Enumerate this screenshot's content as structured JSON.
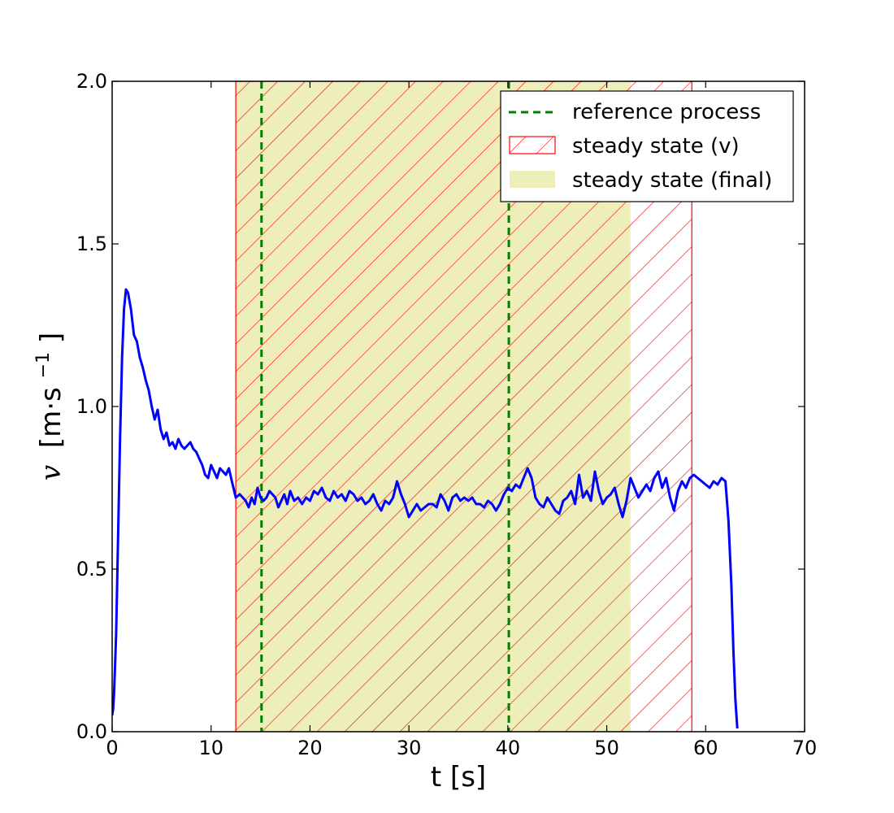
{
  "chart_data": {
    "type": "line",
    "title": "",
    "xlabel": "t [s]",
    "ylabel": {
      "symbol": "v",
      "unit_open": "[m·s",
      "exponent": "−1",
      "unit_close": "]"
    },
    "xlim": [
      0,
      70
    ],
    "ylim": [
      0,
      2.0
    ],
    "xticks": [
      0,
      10,
      20,
      30,
      40,
      50,
      60,
      70
    ],
    "xtick_labels": [
      "0",
      "10",
      "20",
      "30",
      "40",
      "50",
      "60",
      "70"
    ],
    "yticks": [
      0,
      0.5,
      1.0,
      1.5,
      2.0
    ],
    "ytick_labels": [
      "0.0",
      "0.5",
      "1.0",
      "1.5",
      "2.0"
    ],
    "grid": false,
    "legend_placement": "top-right",
    "colors": {
      "line": "#0000ff",
      "reference": "#008000",
      "hatch": "#ff0000",
      "final_fill": "#eeeebb"
    },
    "series": [
      {
        "values_x": [
          0,
          0.1,
          0.2,
          0.4,
          0.6,
          0.8,
          1.0,
          1.2,
          1.4,
          1.6,
          1.9,
          2.2,
          2.5,
          2.8,
          3.1,
          3.4,
          3.7,
          4.0,
          4.3,
          4.6,
          4.9,
          5.2,
          5.5,
          5.8,
          6.1,
          6.4,
          6.7,
          7.0,
          7.3,
          7.6,
          7.9,
          8.2,
          8.5,
          8.8,
          9.1,
          9.4,
          9.7,
          10.0,
          10.3,
          10.6,
          10.9,
          11.2,
          11.5,
          11.8,
          12.1,
          12.5,
          12.9,
          13.2,
          13.5,
          13.8,
          14.1,
          14.4,
          14.7,
          15.0,
          15.3,
          15.6,
          15.9,
          16.2,
          16.5,
          16.8,
          17.1,
          17.4,
          17.7,
          18.0,
          18.4,
          18.8,
          19.2,
          19.6,
          20.0,
          20.4,
          20.8,
          21.2,
          21.6,
          22.0,
          22.4,
          22.8,
          23.2,
          23.6,
          24.0,
          24.4,
          24.8,
          25.2,
          25.6,
          26.0,
          26.4,
          26.8,
          27.2,
          27.6,
          28.0,
          28.4,
          28.8,
          29.2,
          29.6,
          30.0,
          30.4,
          30.8,
          31.2,
          31.6,
          32.0,
          32.4,
          32.8,
          33.2,
          33.6,
          34.0,
          34.4,
          34.8,
          35.2,
          35.6,
          36.0,
          36.4,
          36.8,
          37.2,
          37.6,
          38.0,
          38.4,
          38.8,
          39.2,
          39.6,
          40.0,
          40.4,
          40.8,
          41.2,
          41.6,
          42.0,
          42.4,
          42.8,
          43.2,
          43.6,
          44.0,
          44.4,
          44.8,
          45.2,
          45.6,
          46.0,
          46.4,
          46.8,
          47.2,
          47.6,
          48.0,
          48.4,
          48.8,
          49.2,
          49.6,
          50.0,
          50.4,
          50.8,
          51.2,
          51.6,
          52.0,
          52.4,
          52.8,
          53.2,
          53.6,
          54.0,
          54.4,
          54.8,
          55.2,
          55.6,
          56.0,
          56.4,
          56.8,
          57.2,
          57.6,
          58.0,
          58.4,
          58.8,
          59.2,
          59.6,
          60.0,
          60.4,
          60.8,
          61.2,
          61.6,
          62.0,
          62.3,
          62.6,
          62.8,
          63.0,
          63.2
        ],
        "values_y": [
          0.05,
          0.07,
          0.12,
          0.3,
          0.6,
          0.9,
          1.15,
          1.3,
          1.36,
          1.35,
          1.3,
          1.22,
          1.2,
          1.15,
          1.12,
          1.08,
          1.05,
          1.0,
          0.96,
          0.99,
          0.93,
          0.9,
          0.92,
          0.88,
          0.89,
          0.87,
          0.9,
          0.88,
          0.87,
          0.88,
          0.89,
          0.87,
          0.86,
          0.84,
          0.82,
          0.79,
          0.78,
          0.82,
          0.8,
          0.78,
          0.81,
          0.8,
          0.79,
          0.81,
          0.77,
          0.72,
          0.73,
          0.72,
          0.71,
          0.69,
          0.72,
          0.7,
          0.75,
          0.72,
          0.71,
          0.72,
          0.74,
          0.73,
          0.72,
          0.69,
          0.71,
          0.73,
          0.7,
          0.74,
          0.71,
          0.72,
          0.7,
          0.72,
          0.71,
          0.74,
          0.73,
          0.75,
          0.72,
          0.71,
          0.74,
          0.72,
          0.73,
          0.71,
          0.74,
          0.73,
          0.71,
          0.72,
          0.7,
          0.71,
          0.73,
          0.7,
          0.68,
          0.71,
          0.7,
          0.72,
          0.77,
          0.73,
          0.7,
          0.66,
          0.68,
          0.7,
          0.68,
          0.69,
          0.7,
          0.7,
          0.69,
          0.73,
          0.71,
          0.68,
          0.72,
          0.73,
          0.71,
          0.72,
          0.71,
          0.72,
          0.7,
          0.7,
          0.69,
          0.71,
          0.7,
          0.68,
          0.7,
          0.73,
          0.75,
          0.74,
          0.76,
          0.75,
          0.78,
          0.81,
          0.78,
          0.72,
          0.7,
          0.69,
          0.72,
          0.7,
          0.68,
          0.67,
          0.71,
          0.72,
          0.74,
          0.7,
          0.79,
          0.72,
          0.74,
          0.71,
          0.8,
          0.74,
          0.7,
          0.72,
          0.73,
          0.75,
          0.7,
          0.66,
          0.71,
          0.78,
          0.75,
          0.72,
          0.74,
          0.76,
          0.74,
          0.78,
          0.8,
          0.75,
          0.78,
          0.72,
          0.68,
          0.74,
          0.77,
          0.75,
          0.78,
          0.79,
          0.78,
          0.77,
          0.76,
          0.75,
          0.77,
          0.76,
          0.78,
          0.77,
          0.65,
          0.45,
          0.25,
          0.1,
          0.01
        ]
      }
    ],
    "reference_lines_x": [
      15.1,
      40.1
    ],
    "steady_state_v": [
      12.5,
      58.6
    ],
    "steady_state_final": [
      12.5,
      52.4
    ],
    "legend": {
      "reference": "reference process",
      "steady_v": "steady state (v)",
      "steady_final": "steady state (final)"
    }
  }
}
